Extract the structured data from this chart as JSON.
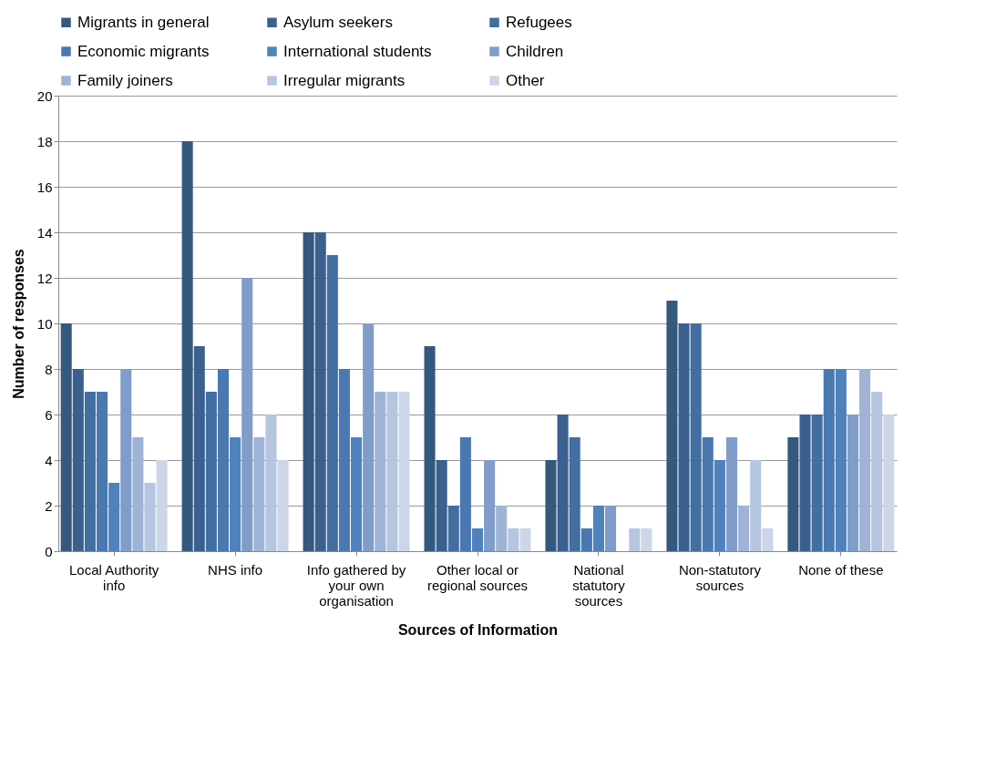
{
  "chart_data": {
    "type": "bar",
    "xlabel": "Sources of Information",
    "ylabel": "Number of responses",
    "categories": [
      "Local Authority info",
      "NHS  info",
      "Info gathered by your own organisation",
      "Other local or regional sources",
      "National statutory sources",
      "Non-statutory sources",
      "None of these"
    ],
    "series": [
      {
        "name": "Migrants in general",
        "color": "#35587f",
        "values": [
          10,
          18,
          14,
          9,
          4,
          11,
          5
        ]
      },
      {
        "name": "Asylum seekers",
        "color": "#3b6090",
        "values": [
          8,
          9,
          14,
          4,
          6,
          10,
          6
        ]
      },
      {
        "name": "Refugees",
        "color": "#426ea2",
        "values": [
          7,
          7,
          13,
          2,
          5,
          10,
          6
        ]
      },
      {
        "name": "Economic migrants",
        "color": "#4a78b0",
        "values": [
          7,
          8,
          8,
          5,
          1,
          5,
          8
        ]
      },
      {
        "name": "International students",
        "color": "#4f81bd",
        "values": [
          3,
          5,
          5,
          1,
          2,
          4,
          8
        ]
      },
      {
        "name": "Children",
        "color": "#7f9dc8",
        "values": [
          8,
          12,
          10,
          4,
          2,
          5,
          6
        ]
      },
      {
        "name": "Family joiners",
        "color": "#9eb3d6",
        "values": [
          5,
          5,
          7,
          2,
          0,
          2,
          8
        ]
      },
      {
        "name": "Irregular migrants",
        "color": "#b6c5e0",
        "values": [
          3,
          6,
          7,
          1,
          1,
          4,
          7
        ]
      },
      {
        "name": "Other",
        "color": "#cdd6e8",
        "values": [
          4,
          4,
          7,
          1,
          1,
          1,
          6
        ]
      }
    ],
    "ylim": [
      0,
      20
    ],
    "yticks": [
      0,
      2,
      4,
      6,
      8,
      10,
      12,
      14,
      16,
      18,
      20
    ],
    "grid": "y",
    "legend": "top"
  }
}
